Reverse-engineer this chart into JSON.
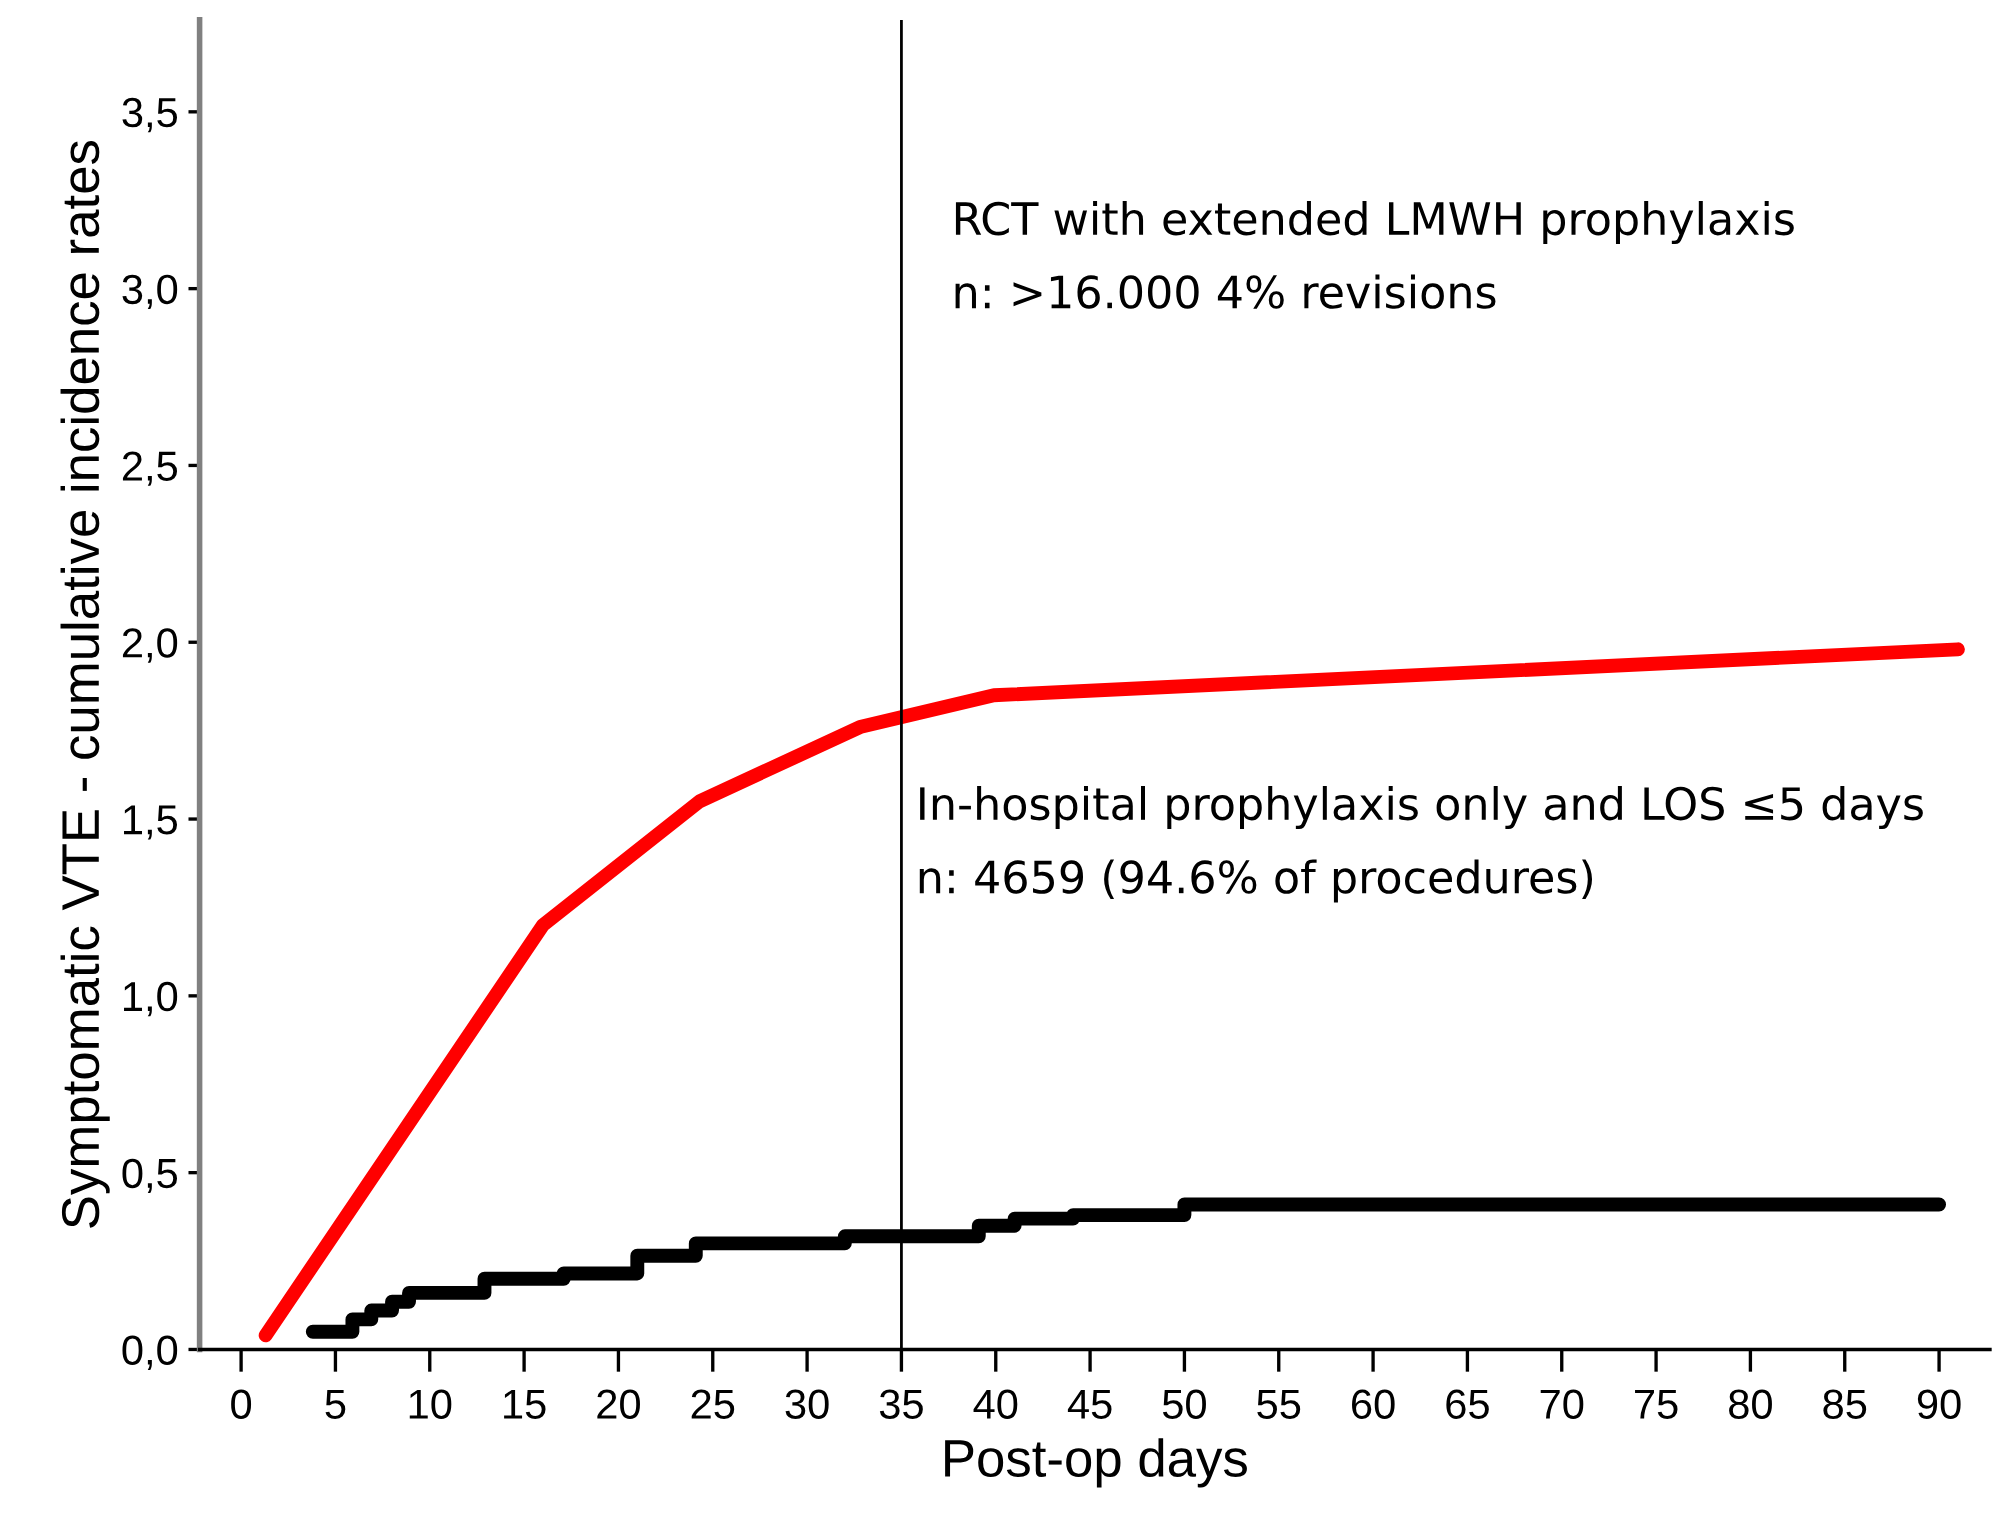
{
  "chart_data": {
    "type": "line",
    "xlabel": "Post-op days",
    "ylabel": "Symptomatic VTE - cumulative incidence rates",
    "xlim": [
      -2.2,
      92.7
    ],
    "ylim": [
      0,
      3.76
    ],
    "xticks": [
      0,
      5,
      10,
      15,
      20,
      25,
      30,
      35,
      40,
      45,
      50,
      55,
      60,
      65,
      70,
      75,
      80,
      85,
      90
    ],
    "yticks": [
      {
        "value": 0,
        "label": "0,0"
      },
      {
        "value": 0.5,
        "label": "0,5"
      },
      {
        "value": 1,
        "label": "1,0"
      },
      {
        "value": 1.5,
        "label": "1,5"
      },
      {
        "value": 2,
        "label": "2,0"
      },
      {
        "value": 2.5,
        "label": "2,5"
      },
      {
        "value": 3,
        "label": "3,0"
      },
      {
        "value": 3.5,
        "label": "3,5"
      }
    ],
    "grid": false,
    "legend": false,
    "marker": "none",
    "line_style": "solid",
    "series": [
      {
        "color": "#ff0000",
        "x": [
          1.3,
          16.0,
          24.3,
          32.8,
          39.9,
          91
        ],
        "values": [
          0.04,
          1.2,
          1.55,
          1.76,
          1.85,
          1.98
        ]
      },
      {
        "type": "step",
        "color": "#000000",
        "x": [
          3.8,
          5.9,
          6.9,
          8.0,
          8.9,
          12.9,
          17.1,
          21.0,
          24.1,
          32.0,
          39.1,
          41.0,
          44.1,
          50.0,
          90
        ],
        "values": [
          0.05,
          0.085,
          0.11,
          0.135,
          0.16,
          0.2,
          0.215,
          0.265,
          0.3,
          0.32,
          0.35,
          0.37,
          0.38,
          0.41,
          0.41
        ]
      }
    ],
    "annotations": [
      "RCT with extended LMWH prophylaxis\nn: >16.000 4% revisions",
      "In-hospital prophylaxis only and LOS ≤5 days\nn: 4659 (94.6% of procedures)"
    ],
    "ref_lines": [
      {
        "axis": "x",
        "value": 35,
        "color": "#000000",
        "line_style": "solid",
        "label": null
      }
    ]
  }
}
